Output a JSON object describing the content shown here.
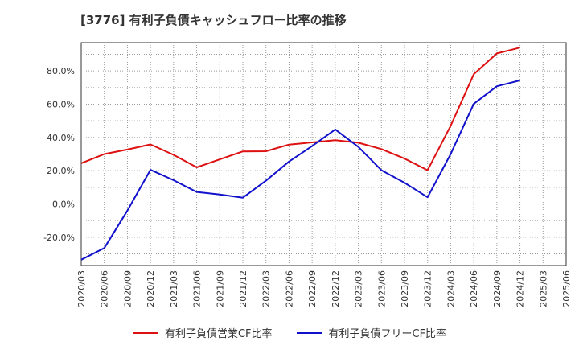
{
  "title": "[3776]  有利子負債キャッシュフロー比率の推移",
  "chart_data": {
    "type": "line",
    "x": [
      "2020/03",
      "2020/06",
      "2020/09",
      "2020/12",
      "2021/03",
      "2021/06",
      "2021/09",
      "2021/12",
      "2022/03",
      "2022/06",
      "2022/09",
      "2022/12",
      "2023/03",
      "2023/06",
      "2023/09",
      "2023/12",
      "2024/03",
      "2024/06",
      "2024/09",
      "2024/12",
      "2025/03",
      "2025/06"
    ],
    "series": [
      {
        "name": "有利子負債営業CF比率",
        "color": "#dd1111",
        "values": [
          24.5,
          30.0,
          32.7,
          35.8,
          29.5,
          22.0,
          26.8,
          31.6,
          31.7,
          35.7,
          37.0,
          38.3,
          36.8,
          33.0,
          27.3,
          20.3,
          47.0,
          78.0,
          90.5,
          94.0,
          null,
          null
        ]
      },
      {
        "name": "有利子負債フリーCF比率",
        "color": "#1111cc",
        "values": [
          -33.5,
          -26.5,
          -4.0,
          20.5,
          14.3,
          7.2,
          5.7,
          3.8,
          14.0,
          25.5,
          34.8,
          44.8,
          34.3,
          20.3,
          12.8,
          4.0,
          30.0,
          60.2,
          70.8,
          74.3,
          null,
          null
        ]
      }
    ],
    "ylim": [
      -37,
      97
    ],
    "yticks": [
      -20,
      0,
      20,
      40,
      60,
      80
    ],
    "ytick_labels": [
      "-20.0%",
      "0.0%",
      "20.0%",
      "40.0%",
      "60.0%",
      "80.0%"
    ],
    "grid": true,
    "legend": "bottom"
  }
}
